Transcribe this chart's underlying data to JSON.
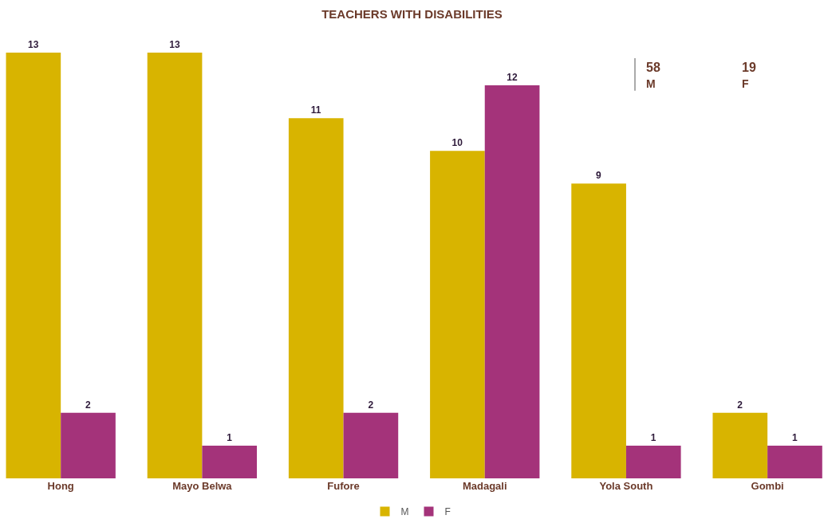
{
  "chart_data": {
    "type": "bar",
    "title": "TEACHERS WITH DISABILITIES",
    "categories": [
      "Hong",
      "Mayo Belwa",
      "Fufore",
      "Madagali",
      "Yola South",
      "Gombi"
    ],
    "series": [
      {
        "name": "M",
        "color": "#d8b400",
        "values": [
          13,
          13,
          11,
          10,
          9,
          2
        ]
      },
      {
        "name": "F",
        "color": "#a4337a",
        "values": [
          2,
          1,
          2,
          12,
          1,
          1
        ]
      }
    ],
    "ylim": [
      0,
      13
    ],
    "tick_labels": "x",
    "data_labels": true,
    "legend": "bottom",
    "annotations": [
      "58",
      "M",
      "19",
      "F"
    ]
  }
}
